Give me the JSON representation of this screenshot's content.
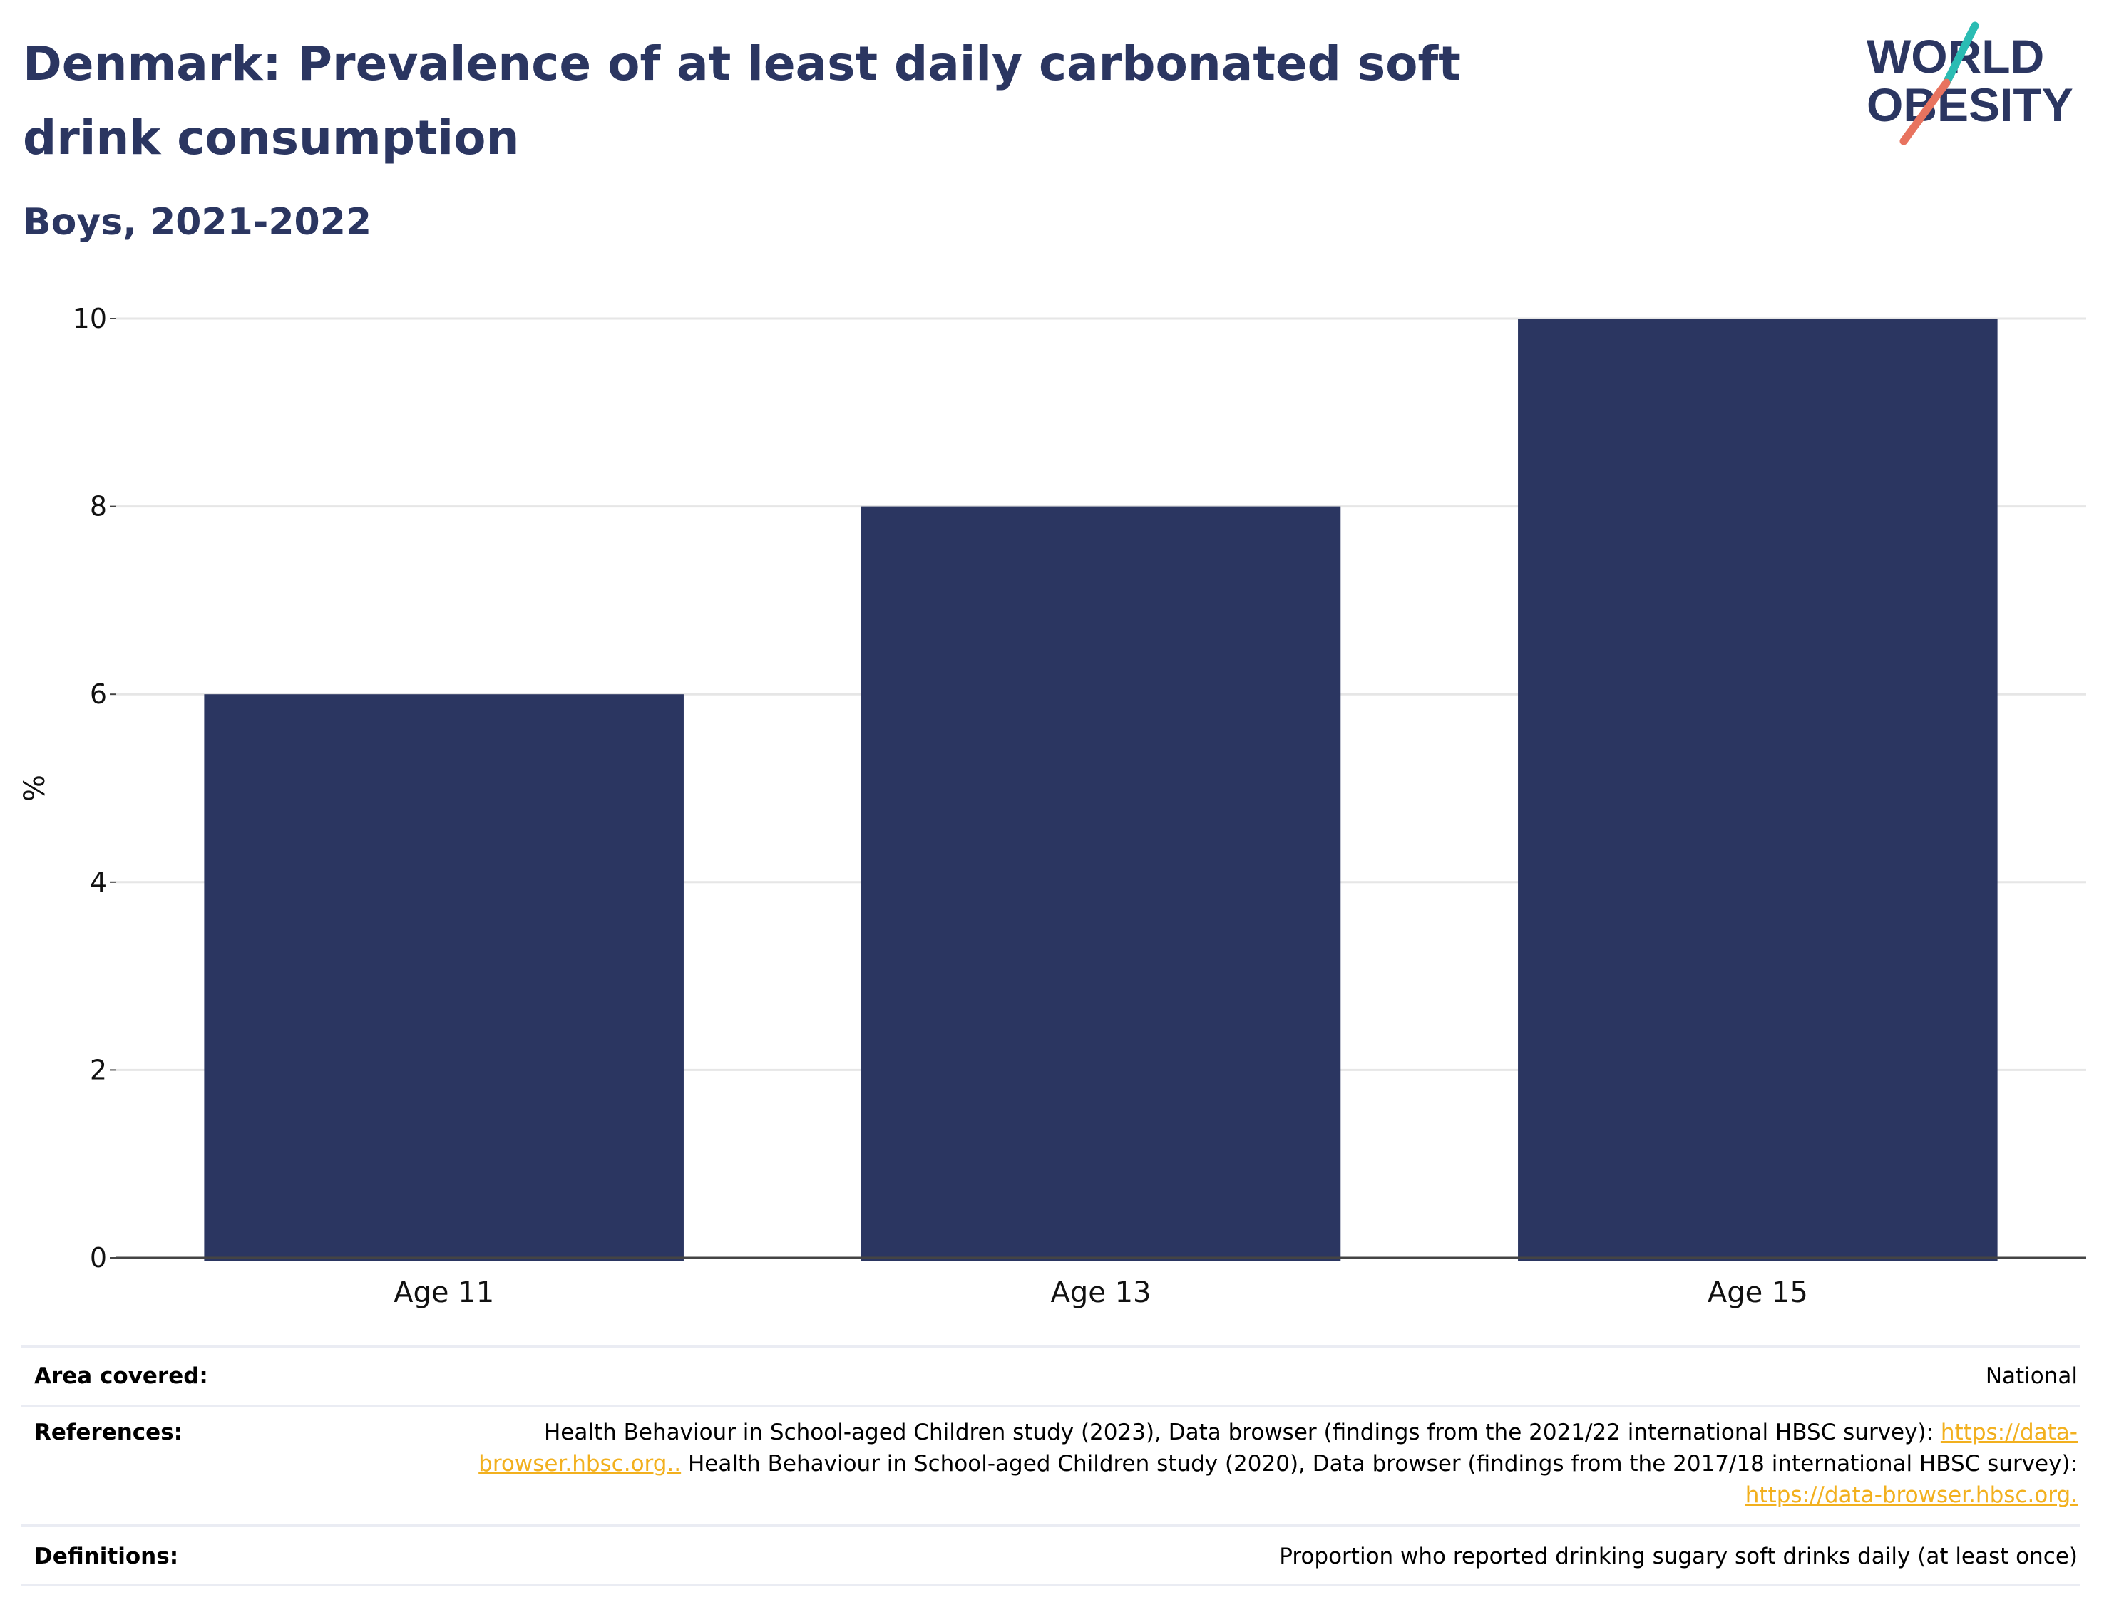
{
  "header": {
    "title": "Denmark: Prevalence of at least daily carbonated soft drink consumption",
    "subtitle": "Boys, 2021-2022"
  },
  "logo": {
    "line1": "WORLD",
    "line2": "OBESITY",
    "colors": {
      "text": "#2b3661",
      "teal": "#2bbcb3",
      "coral": "#e8735f"
    }
  },
  "chart_data": {
    "type": "bar",
    "categories": [
      "Age 11",
      "Age 13",
      "Age 15"
    ],
    "series": [
      {
        "values": [
          6,
          8,
          10
        ],
        "color": "#2b3661"
      }
    ],
    "title": "Denmark: Prevalence of at least daily carbonated soft drink consumption",
    "subtitle": "Boys, 2021-2022",
    "xlabel": "",
    "ylabel": "%",
    "ylim": [
      0,
      10
    ],
    "yticks": [
      "0",
      "2",
      "4",
      "6",
      "8",
      "10"
    ],
    "grid": true,
    "legend": "none"
  },
  "meta": {
    "area_label": "Area covered:",
    "area_value": "National",
    "references_label": "References:",
    "references_text1": "Health Behaviour in School-aged Children study (2023), Data browser (findings from the 2021/22 international HBSC survey):",
    "references_link1": "https://data-browser.hbsc.org..",
    "references_text2": "Health Behaviour in School-aged Children study (2020), Data browser (findings from the 2017/18 international HBSC survey):",
    "references_link2": "https://data-browser.hbsc.org.",
    "definitions_label": "Definitions:",
    "definitions_value": "Proportion who reported drinking sugary soft drinks daily (at least once)"
  }
}
